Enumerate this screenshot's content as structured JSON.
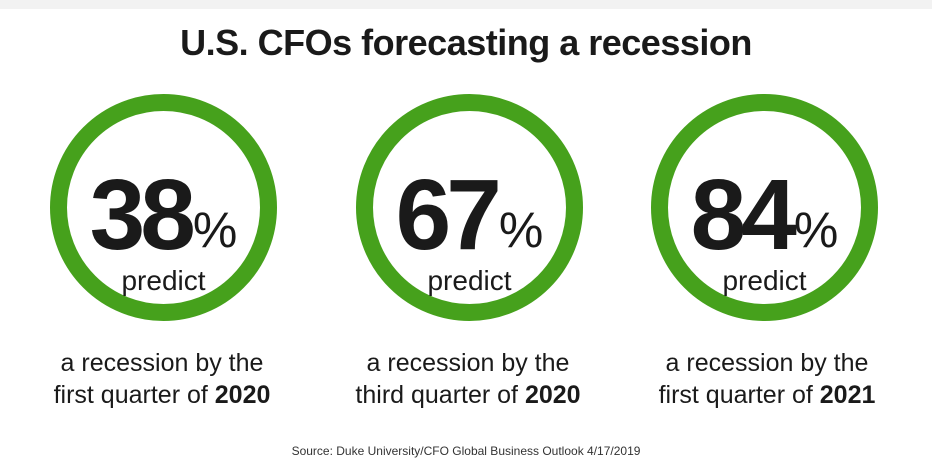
{
  "title": "U.S. CFOs forecasting a recession",
  "source": "Source: Duke University/CFO Global Business Outlook  4/17/2019",
  "colors": {
    "ring": "#46a11c",
    "text": "#1a1a1a",
    "background": "#ffffff"
  },
  "stats": [
    {
      "percent": "38",
      "percent_sign": "%",
      "predict_label": "predict",
      "caption_line1": "a recession by the",
      "caption_line2_prefix": "first quarter of ",
      "caption_year": "2020"
    },
    {
      "percent": "67",
      "percent_sign": "%",
      "predict_label": "predict",
      "caption_line1": "a recession by the",
      "caption_line2_prefix": "third quarter of ",
      "caption_year": "2020"
    },
    {
      "percent": "84",
      "percent_sign": "%",
      "predict_label": "predict",
      "caption_line1": "a recession by the",
      "caption_line2_prefix": "first quarter of ",
      "caption_year": "2021"
    }
  ],
  "chart_data": {
    "type": "bar",
    "title": "U.S. CFOs forecasting a recession",
    "categories": [
      "a recession by the first quarter of 2020",
      "a recession by the third quarter of 2020",
      "a recession by the first quarter of 2021"
    ],
    "values": [
      38,
      67,
      84
    ],
    "unit": "%"
  }
}
